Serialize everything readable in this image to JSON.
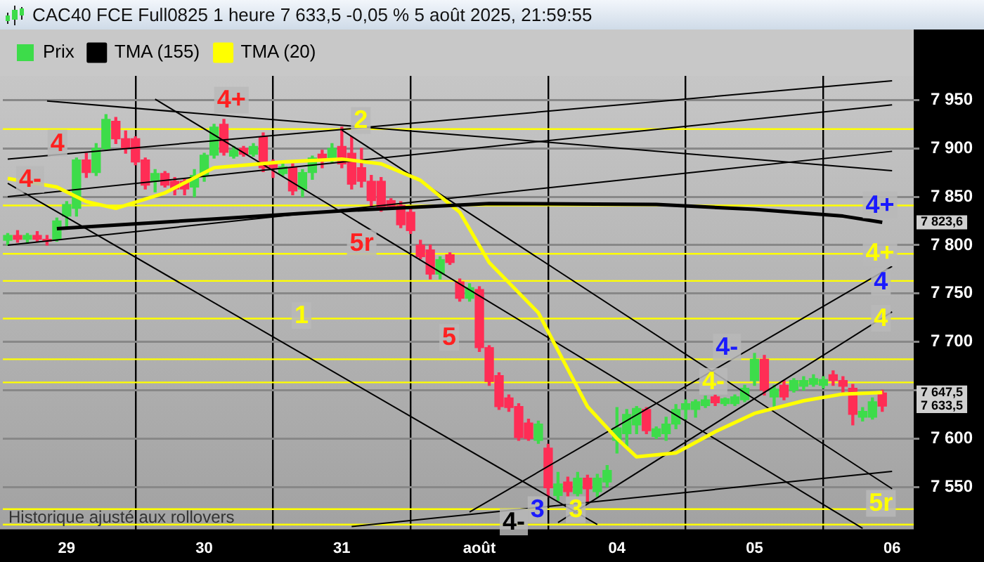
{
  "chart_data": {
    "type": "candlestick",
    "title": "CAC40 FCE Full0825 1 heure 7 633,5 -0,05 % 5 août 2025, 21:59:55",
    "categories": [
      null,
      null,
      null,
      null,
      null,
      null,
      "29",
      null,
      null,
      null,
      null,
      null,
      null,
      null,
      null,
      null,
      null,
      null,
      null,
      null,
      "30",
      null,
      null,
      null,
      null,
      null,
      null,
      null,
      null,
      null,
      null,
      null,
      null,
      null,
      "31",
      null,
      null,
      null,
      null,
      null,
      null,
      null,
      null,
      null,
      null,
      null,
      null,
      null,
      "août",
      null,
      null,
      null,
      null,
      null,
      null,
      null,
      null,
      null,
      null,
      null,
      null,
      null,
      "04",
      null,
      null,
      null,
      null,
      null,
      null,
      null,
      null,
      null,
      null,
      null,
      null,
      null,
      "05",
      null,
      null,
      null,
      null,
      null,
      null,
      null,
      null,
      null,
      null,
      null,
      null,
      null,
      "06"
    ],
    "ylim": [
      7506,
      7975
    ],
    "yticks": [
      {
        "value": 7550,
        "label": "7 550"
      },
      {
        "value": 7600,
        "label": "7 600"
      },
      {
        "value": 7650,
        "label": null
      },
      {
        "value": 7700,
        "label": "7 700"
      },
      {
        "value": 7750,
        "label": "7 750"
      },
      {
        "value": 7800,
        "label": "7 800"
      },
      {
        "value": 7850,
        "label": "7 850"
      },
      {
        "value": 7900,
        "label": "7 900"
      },
      {
        "value": 7950,
        "label": "7 950"
      }
    ],
    "grid": true,
    "legend": "top left",
    "marker": "none",
    "series": [
      {
        "name": "Prix",
        "ohlc": [
          [
            7805,
            7812,
            7800,
            7810
          ],
          [
            7810,
            7815,
            7803,
            7806
          ],
          [
            7806,
            7812,
            7802,
            7810
          ],
          [
            7810,
            7814,
            7804,
            7806
          ],
          [
            7806,
            7810,
            7800,
            7804
          ],
          [
            7806,
            7828,
            7804,
            7825
          ],
          [
            7830,
            7845,
            7818,
            7842
          ],
          [
            7838,
            7890,
            7830,
            7888
          ],
          [
            7888,
            7895,
            7870,
            7875
          ],
          [
            7875,
            7905,
            7872,
            7900
          ],
          [
            7900,
            7935,
            7898,
            7930
          ],
          [
            7928,
            7932,
            7905,
            7910
          ],
          [
            7910,
            7918,
            7895,
            7900
          ],
          [
            7910,
            7912,
            7883,
            7886
          ],
          [
            7888,
            7890,
            7858,
            7862
          ],
          [
            7866,
            7878,
            7855,
            7874
          ],
          [
            7874,
            7876,
            7860,
            7862
          ],
          [
            7866,
            7870,
            7852,
            7858
          ],
          [
            7866,
            7868,
            7852,
            7858
          ],
          [
            7860,
            7878,
            7850,
            7872
          ],
          [
            7872,
            7895,
            7866,
            7893
          ],
          [
            7893,
            7925,
            7890,
            7922
          ],
          [
            7925,
            7930,
            7893,
            7896
          ],
          [
            7892,
            7902,
            7890,
            7898
          ],
          [
            7900,
            7902,
            7892,
            7894
          ],
          [
            7894,
            7905,
            7892,
            7902
          ],
          [
            7912,
            7916,
            7876,
            7880
          ],
          [
            7886,
            7888,
            7870,
            7880
          ],
          [
            7874,
            7884,
            7872,
            7881
          ],
          [
            7880,
            7884,
            7852,
            7856
          ],
          [
            7858,
            7878,
            7850,
            7875
          ],
          [
            7875,
            7892,
            7868,
            7890
          ],
          [
            7894,
            7898,
            7880,
            7888
          ],
          [
            7888,
            7905,
            7885,
            7900
          ],
          [
            7902,
            7922,
            7880,
            7884
          ],
          [
            7895,
            7912,
            7858,
            7863
          ],
          [
            7880,
            7900,
            7860,
            7866
          ],
          [
            7866,
            7872,
            7840,
            7846
          ],
          [
            7866,
            7870,
            7835,
            7837
          ],
          [
            7846,
            7848,
            7838,
            7840
          ],
          [
            7841,
            7845,
            7818,
            7821
          ],
          [
            7834,
            7838,
            7812,
            7815
          ],
          [
            7800,
            7805,
            7786,
            7788
          ],
          [
            7795,
            7800,
            7765,
            7770
          ],
          [
            7770,
            7788,
            7765,
            7785
          ],
          [
            7790,
            7792,
            7780,
            7782
          ],
          [
            7762,
            7765,
            7742,
            7745
          ],
          [
            7745,
            7760,
            7742,
            7756
          ],
          [
            7754,
            7757,
            7690,
            7694
          ],
          [
            7694,
            7696,
            7655,
            7659
          ],
          [
            7665,
            7668,
            7630,
            7633
          ],
          [
            7642,
            7645,
            7628,
            7632
          ],
          [
            7633,
            7636,
            7598,
            7601
          ],
          [
            7616,
            7620,
            7598,
            7600
          ],
          [
            7598,
            7618,
            7595,
            7615
          ],
          [
            7590,
            7594,
            7540,
            7549
          ],
          [
            7541,
            7565,
            7536,
            7553
          ],
          [
            7555,
            7560,
            7540,
            7545
          ],
          [
            7543,
            7565,
            7540,
            7559
          ],
          [
            7559,
            7562,
            7535,
            7548
          ],
          [
            7545,
            7563,
            7540,
            7559
          ],
          [
            7555,
            7572,
            7550,
            7567
          ],
          [
            7598,
            7632,
            7585,
            7611
          ],
          [
            7605,
            7630,
            7590,
            7625
          ],
          [
            7614,
            7633,
            7605,
            7631
          ],
          [
            7630,
            7632,
            7605,
            7608
          ],
          [
            7602,
            7612,
            7600,
            7610
          ],
          [
            7605,
            7622,
            7598,
            7615
          ],
          [
            7615,
            7635,
            7610,
            7630
          ],
          [
            7630,
            7640,
            7620,
            7636
          ],
          [
            7630,
            7640,
            7622,
            7638
          ],
          [
            7634,
            7644,
            7632,
            7640
          ],
          [
            7643,
            7645,
            7634,
            7637
          ],
          [
            7636,
            7642,
            7634,
            7641
          ],
          [
            7636,
            7645,
            7634,
            7643
          ],
          [
            7640,
            7655,
            7638,
            7652
          ],
          [
            7660,
            7688,
            7655,
            7682
          ],
          [
            7682,
            7686,
            7645,
            7650
          ],
          [
            7643,
            7655,
            7630,
            7651
          ],
          [
            7655,
            7660,
            7640,
            7643
          ],
          [
            7650,
            7662,
            7648,
            7660
          ],
          [
            7654,
            7664,
            7650,
            7660
          ],
          [
            7656,
            7666,
            7654,
            7662
          ],
          [
            7655,
            7664,
            7652,
            7661
          ],
          [
            7666,
            7670,
            7655,
            7660
          ],
          [
            7660,
            7664,
            7648,
            7654
          ],
          [
            7652,
            7656,
            7614,
            7625
          ],
          [
            7622,
            7632,
            7618,
            7628
          ],
          [
            7622,
            7642,
            7620,
            7638
          ],
          [
            7647,
            7650,
            7628,
            7633.5
          ],
          null
        ],
        "colors": [
          "#3ddc4a",
          "#ff2d55",
          "#3ddc4a",
          "#ff2d55",
          "#ff2d55",
          "#3ddc4a",
          "#3ddc4a",
          "#3ddc4a",
          "#ff2d55",
          "#3ddc4a",
          "#3ddc4a",
          "#ff2d55",
          "#ff2d55",
          "#ff2d55",
          "#ff2d55",
          "#3ddc4a",
          "#ff2d55",
          "#ff2d55",
          "#ff2d55",
          "#3ddc4a",
          "#3ddc4a",
          "#3ddc4a",
          "#ff2d55",
          "#3ddc4a",
          "#ff2d55",
          "#3ddc4a",
          "#ff2d55",
          "#ff2d55",
          "#3ddc4a",
          "#ff2d55",
          "#3ddc4a",
          "#3ddc4a",
          "#ff2d55",
          "#3ddc4a",
          "#ff2d55",
          "#ff2d55",
          "#ff2d55",
          "#ff2d55",
          "#ff2d55",
          "#ff2d55",
          "#ff2d55",
          "#ff2d55",
          "#ff2d55",
          "#ff2d55",
          "#3ddc4a",
          "#ff2d55",
          "#ff2d55",
          "#3ddc4a",
          "#ff2d55",
          "#ff2d55",
          "#ff2d55",
          "#ff2d55",
          "#ff2d55",
          "#ff2d55",
          "#3ddc4a",
          "#ff2d55",
          "#3ddc4a",
          "#ff2d55",
          "#3ddc4a",
          "#ff2d55",
          "#3ddc4a",
          "#3ddc4a",
          "#3ddc4a",
          "#3ddc4a",
          "#3ddc4a",
          "#ff2d55",
          "#3ddc4a",
          "#3ddc4a",
          "#3ddc4a",
          "#3ddc4a",
          "#3ddc4a",
          "#3ddc4a",
          "#ff2d55",
          "#3ddc4a",
          "#3ddc4a",
          "#3ddc4a",
          "#3ddc4a",
          "#ff2d55",
          "#3ddc4a",
          "#ff2d55",
          "#3ddc4a",
          "#3ddc4a",
          "#3ddc4a",
          "#3ddc4a",
          "#ff2d55",
          "#ff2d55",
          "#ff2d55",
          "#3ddc4a",
          "#3ddc4a",
          "#ff2d55",
          null
        ]
      },
      {
        "name": "TMA (155)",
        "type": "line",
        "color": "#000000",
        "values": [
          null,
          null,
          null,
          null,
          null,
          7817,
          null,
          null,
          null,
          null,
          null,
          null,
          null,
          null,
          null,
          null,
          null,
          null,
          null,
          null,
          null,
          7827,
          null,
          null,
          null,
          null,
          null,
          null,
          null,
          null,
          null,
          null,
          null,
          null,
          null,
          7836,
          null,
          null,
          null,
          null,
          null,
          null,
          null,
          null,
          null,
          null,
          null,
          null,
          null,
          7843,
          null,
          null,
          null,
          null,
          null,
          null,
          null,
          null,
          null,
          null,
          null,
          null,
          null,
          null,
          null,
          null,
          7842,
          null,
          null,
          null,
          null,
          null,
          null,
          null,
          null,
          null,
          7837,
          null,
          null,
          null,
          null,
          null,
          null,
          null,
          null,
          7830,
          null,
          null,
          null,
          7823.6,
          null
        ]
      },
      {
        "name": "TMA (20)",
        "type": "line",
        "color": "#ffff00",
        "values": [
          7869,
          null,
          null,
          null,
          null,
          7860,
          null,
          null,
          7845,
          null,
          null,
          7838,
          null,
          null,
          null,
          null,
          7854,
          null,
          null,
          null,
          null,
          7880,
          null,
          null,
          null,
          null,
          null,
          null,
          7886,
          null,
          null,
          null,
          null,
          null,
          7889,
          null,
          null,
          null,
          7884,
          null,
          null,
          null,
          7867,
          null,
          null,
          null,
          7834,
          null,
          null,
          7782,
          null,
          null,
          null,
          null,
          7730,
          null,
          7691,
          null,
          null,
          7633,
          null,
          null,
          7600,
          null,
          7581,
          null,
          null,
          null,
          7585,
          null,
          null,
          null,
          7607,
          null,
          null,
          null,
          7626,
          null,
          null,
          null,
          null,
          7639,
          null,
          null,
          null,
          7646,
          null,
          null,
          null,
          7647.5,
          null
        ]
      },
      {
        "type": "line",
        "color": "#000000",
        "values": [
          7889,
          null,
          null,
          null,
          null,
          null,
          null,
          null,
          null,
          null,
          null,
          null,
          null,
          null,
          null,
          null,
          null,
          null,
          null,
          null,
          null,
          null,
          null,
          null,
          null,
          null,
          null,
          null,
          null,
          null,
          null,
          null,
          null,
          null,
          null,
          null,
          null,
          null,
          null,
          null,
          null,
          null,
          null,
          null,
          null,
          null,
          null,
          null,
          null,
          null,
          null,
          null,
          null,
          null,
          null,
          null,
          null,
          null,
          null,
          null,
          null,
          null,
          null,
          null,
          null,
          null,
          null,
          null,
          null,
          null,
          null,
          null,
          null,
          null,
          null,
          null,
          null,
          null,
          null,
          null,
          null,
          null,
          null,
          null,
          null,
          null,
          null,
          null,
          null,
          null,
          7970
        ]
      },
      {
        "type": "line",
        "color": "#000000",
        "values": [
          7850,
          null,
          null,
          null,
          null,
          null,
          null,
          null,
          null,
          null,
          null,
          null,
          null,
          null,
          null,
          null,
          null,
          null,
          null,
          null,
          null,
          null,
          null,
          null,
          null,
          null,
          null,
          null,
          null,
          null,
          null,
          null,
          null,
          null,
          null,
          null,
          null,
          null,
          null,
          null,
          null,
          null,
          null,
          null,
          null,
          null,
          null,
          null,
          null,
          null,
          null,
          null,
          null,
          null,
          null,
          null,
          null,
          null,
          null,
          null,
          null,
          null,
          null,
          null,
          null,
          null,
          null,
          null,
          null,
          null,
          null,
          null,
          null,
          null,
          null,
          null,
          null,
          null,
          null,
          null,
          null,
          null,
          null,
          null,
          null,
          null,
          null,
          null,
          null,
          null,
          7945
        ]
      },
      {
        "type": "line",
        "color": "#000000",
        "values": [
          7800,
          null,
          null,
          null,
          null,
          null,
          null,
          null,
          null,
          null,
          null,
          null,
          null,
          null,
          null,
          null,
          null,
          null,
          null,
          null,
          null,
          null,
          null,
          null,
          null,
          null,
          null,
          null,
          null,
          null,
          null,
          null,
          null,
          null,
          null,
          null,
          null,
          null,
          null,
          null,
          null,
          null,
          null,
          null,
          null,
          null,
          null,
          null,
          null,
          null,
          null,
          null,
          null,
          null,
          null,
          null,
          null,
          null,
          null,
          null,
          null,
          null,
          null,
          null,
          null,
          null,
          null,
          null,
          null,
          null,
          null,
          null,
          null,
          null,
          null,
          null,
          null,
          null,
          null,
          null,
          null,
          null,
          null,
          null,
          null,
          null,
          null,
          null,
          null,
          null,
          7897
        ]
      },
      {
        "type": "line",
        "color": "#000000",
        "values": [
          null,
          null,
          null,
          null,
          7949,
          null,
          null,
          null,
          null,
          null,
          null,
          null,
          null,
          null,
          null,
          null,
          null,
          null,
          null,
          null,
          null,
          null,
          null,
          null,
          null,
          null,
          null,
          null,
          null,
          null,
          null,
          null,
          null,
          null,
          null,
          null,
          null,
          null,
          null,
          null,
          null,
          null,
          null,
          null,
          null,
          null,
          null,
          null,
          null,
          null,
          null,
          null,
          null,
          null,
          null,
          null,
          null,
          null,
          null,
          null,
          null,
          null,
          null,
          null,
          null,
          null,
          null,
          null,
          null,
          null,
          null,
          null,
          null,
          null,
          null,
          null,
          null,
          null,
          null,
          null,
          null,
          null,
          null,
          null,
          null,
          null,
          null,
          null,
          null,
          null,
          7877
        ]
      },
      {
        "type": "line",
        "color": "#000000",
        "values": [
          null,
          null,
          null,
          null,
          null,
          null,
          null,
          null,
          null,
          null,
          null,
          null,
          null,
          null,
          null,
          7951,
          null,
          null,
          null,
          null,
          null,
          null,
          null,
          null,
          null,
          null,
          null,
          null,
          null,
          null,
          null,
          null,
          null,
          null,
          null,
          null,
          null,
          null,
          null,
          null,
          null,
          null,
          null,
          null,
          null,
          null,
          null,
          null,
          null,
          null,
          null,
          null,
          null,
          null,
          null,
          null,
          null,
          null,
          null,
          null,
          null,
          null,
          null,
          null,
          null,
          null,
          null,
          null,
          null,
          null,
          null,
          null,
          null,
          null,
          null,
          null,
          null,
          null,
          null,
          null,
          null,
          null,
          null,
          null,
          null,
          null,
          null,
          7507,
          null,
          null,
          null
        ]
      },
      {
        "type": "line",
        "color": "#000000",
        "values": [
          7864,
          null,
          null,
          null,
          null,
          null,
          null,
          null,
          null,
          null,
          null,
          null,
          null,
          null,
          null,
          null,
          null,
          null,
          null,
          null,
          null,
          null,
          null,
          null,
          null,
          null,
          null,
          null,
          null,
          null,
          null,
          null,
          null,
          null,
          null,
          null,
          null,
          null,
          null,
          null,
          null,
          null,
          null,
          null,
          null,
          null,
          null,
          null,
          null,
          null,
          null,
          null,
          null,
          null,
          null,
          null,
          null,
          null,
          null,
          null,
          7511,
          null,
          null,
          null,
          null,
          null,
          null,
          null,
          null,
          null,
          null,
          null,
          null,
          null,
          null,
          null,
          null,
          null,
          null,
          null,
          null,
          null,
          null,
          null,
          null,
          null,
          null,
          null,
          null,
          null,
          null
        ]
      },
      {
        "type": "line",
        "color": "#000000",
        "values": [
          null,
          null,
          null,
          null,
          null,
          null,
          null,
          null,
          null,
          null,
          null,
          null,
          null,
          null,
          null,
          null,
          null,
          null,
          null,
          null,
          null,
          null,
          null,
          null,
          null,
          null,
          null,
          null,
          null,
          null,
          null,
          null,
          null,
          null,
          null,
          null,
          null,
          null,
          null,
          null,
          null,
          null,
          null,
          null,
          null,
          null,
          null,
          7524,
          null,
          null,
          null,
          null,
          null,
          null,
          null,
          null,
          null,
          null,
          null,
          null,
          null,
          null,
          null,
          null,
          null,
          null,
          null,
          null,
          null,
          null,
          null,
          null,
          null,
          null,
          null,
          null,
          null,
          null,
          null,
          null,
          null,
          null,
          null,
          null,
          null,
          null,
          null,
          null,
          null,
          null,
          7778
        ]
      },
      {
        "type": "line",
        "color": "#000000",
        "values": [
          null,
          null,
          null,
          null,
          null,
          null,
          null,
          null,
          null,
          null,
          null,
          null,
          null,
          null,
          null,
          null,
          null,
          null,
          null,
          null,
          null,
          null,
          null,
          null,
          null,
          null,
          null,
          null,
          null,
          null,
          null,
          null,
          null,
          null,
          null,
          null,
          null,
          null,
          null,
          null,
          null,
          null,
          null,
          null,
          null,
          null,
          null,
          null,
          null,
          null,
          null,
          null,
          null,
          null,
          null,
          null,
          7513,
          null,
          null,
          null,
          null,
          null,
          null,
          null,
          null,
          null,
          null,
          null,
          null,
          null,
          null,
          null,
          null,
          null,
          null,
          null,
          null,
          null,
          null,
          null,
          null,
          null,
          null,
          null,
          null,
          null,
          null,
          null,
          null,
          null,
          7731
        ]
      },
      {
        "type": "line",
        "color": "#000000",
        "values": [
          null,
          null,
          null,
          null,
          null,
          null,
          null,
          null,
          null,
          null,
          null,
          null,
          null,
          null,
          null,
          null,
          null,
          null,
          null,
          null,
          null,
          null,
          null,
          null,
          null,
          null,
          null,
          null,
          null,
          null,
          null,
          null,
          null,
          null,
          7919,
          null,
          null,
          null,
          null,
          null,
          null,
          null,
          null,
          null,
          null,
          null,
          null,
          null,
          null,
          null,
          null,
          null,
          null,
          null,
          null,
          null,
          null,
          null,
          null,
          null,
          null,
          null,
          null,
          null,
          null,
          null,
          null,
          null,
          null,
          null,
          null,
          null,
          null,
          null,
          null,
          null,
          null,
          null,
          null,
          null,
          null,
          null,
          null,
          null,
          null,
          null,
          null,
          null,
          null,
          null,
          7548
        ]
      },
      {
        "type": "line",
        "color": "#000000",
        "values": [
          null,
          null,
          null,
          null,
          null,
          null,
          null,
          null,
          null,
          null,
          null,
          null,
          null,
          null,
          null,
          null,
          null,
          null,
          null,
          null,
          null,
          null,
          null,
          null,
          null,
          null,
          null,
          null,
          null,
          null,
          null,
          null,
          null,
          null,
          null,
          7509,
          null,
          null,
          null,
          null,
          null,
          null,
          null,
          null,
          null,
          null,
          null,
          null,
          null,
          null,
          null,
          null,
          null,
          null,
          null,
          null,
          null,
          null,
          null,
          null,
          null,
          null,
          null,
          null,
          null,
          null,
          null,
          null,
          null,
          null,
          null,
          null,
          null,
          null,
          null,
          null,
          null,
          null,
          null,
          null,
          null,
          null,
          null,
          null,
          null,
          null,
          null,
          null,
          null,
          null,
          7566
        ]
      }
    ],
    "ref_lines": [
      {
        "axis": "y",
        "value": 7920,
        "color": "#ffff00"
      },
      {
        "axis": "y",
        "value": 7841,
        "color": "#ffff00"
      },
      {
        "axis": "y",
        "value": 7791,
        "color": "#ffff00"
      },
      {
        "axis": "y",
        "value": 7763,
        "color": "#ffff00"
      },
      {
        "axis": "y",
        "value": 7724,
        "color": "#ffff00"
      },
      {
        "axis": "y",
        "value": 7682,
        "color": "#ffff00"
      },
      {
        "axis": "y",
        "value": 7658,
        "color": "#ffff00"
      },
      {
        "axis": "y",
        "value": 7527,
        "color": "#ffff00"
      },
      {
        "axis": "y",
        "value": 7511,
        "color": "#ffff00"
      }
    ],
    "annotations": [
      "4-",
      "4",
      "4+",
      "2",
      "5r",
      "1",
      "5",
      "3",
      "3",
      "4-",
      "4-",
      "4-",
      "4+",
      "4+",
      "4",
      "4",
      "5r",
      "7 823,6",
      "7 647,5",
      "7 633,5",
      "Historique ajusté aux rollovers"
    ]
  }
}
